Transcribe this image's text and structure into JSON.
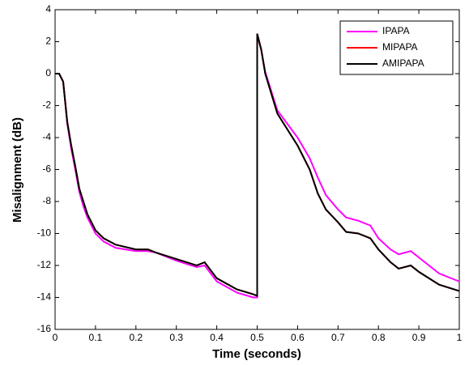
{
  "chart_data": {
    "type": "line",
    "x_label": "Time (seconds)",
    "y_label": "Misalignment (dB)",
    "x": [
      0,
      0.01,
      0.02,
      0.03,
      0.04,
      0.05,
      0.06,
      0.07,
      0.08,
      0.1,
      0.12,
      0.15,
      0.2,
      0.23,
      0.25,
      0.3,
      0.35,
      0.37,
      0.4,
      0.45,
      0.49,
      0.5,
      0.5,
      0.51,
      0.52,
      0.55,
      0.6,
      0.63,
      0.65,
      0.67,
      0.7,
      0.72,
      0.75,
      0.78,
      0.8,
      0.83,
      0.85,
      0.88,
      0.9,
      0.95,
      1
    ],
    "series": [
      {
        "name": "IPAPA",
        "color": "#ff00ff",
        "values": [
          0,
          0,
          -0.5,
          -3.1,
          -4.7,
          -6,
          -7.4,
          -8.3,
          -9,
          -10,
          -10.5,
          -10.9,
          -11.1,
          -11.1,
          -11.2,
          -11.7,
          -12.1,
          -12,
          -13,
          -13.7,
          -14,
          -14,
          2.4,
          1.5,
          0.1,
          -2.3,
          -4,
          -5.3,
          -6.5,
          -7.6,
          -8.5,
          -9,
          -9.2,
          -9.5,
          -10.3,
          -11,
          -11.3,
          -11.1,
          -11.5,
          -12.5,
          -13
        ]
      },
      {
        "name": "MIPAPA",
        "color": "#ff0000",
        "values": [
          0,
          0,
          -0.5,
          -3,
          -4.5,
          -5.8,
          -7.2,
          -8,
          -8.8,
          -9.8,
          -10.3,
          -10.7,
          -11,
          -11,
          -11.2,
          -11.6,
          -12,
          -11.8,
          -12.8,
          -13.5,
          -13.8,
          -13.9,
          2.5,
          1.5,
          0,
          -2.5,
          -4.5,
          -6,
          -7.5,
          -8.5,
          -9.3,
          -9.9,
          -10,
          -10.3,
          -11,
          -11.8,
          -12.2,
          -12,
          -12.4,
          -13.2,
          -13.6
        ]
      },
      {
        "name": "AMIPAPA",
        "color": "#000000",
        "values": [
          0,
          0,
          -0.5,
          -3,
          -4.5,
          -5.8,
          -7.2,
          -8,
          -8.8,
          -9.8,
          -10.3,
          -10.7,
          -11,
          -11,
          -11.2,
          -11.6,
          -12,
          -11.8,
          -12.8,
          -13.5,
          -13.8,
          -13.9,
          2.5,
          1.5,
          0,
          -2.5,
          -4.5,
          -6,
          -7.5,
          -8.5,
          -9.3,
          -9.9,
          -10,
          -10.3,
          -11,
          -11.8,
          -12.2,
          -12,
          -12.4,
          -13.2,
          -13.6
        ]
      }
    ],
    "xlim": [
      0,
      1
    ],
    "ylim": [
      -16,
      4
    ],
    "xticks": [
      0,
      0.1,
      0.2,
      0.3,
      0.4,
      0.5,
      0.6,
      0.7,
      0.8,
      0.9,
      1
    ],
    "yticks": [
      -16,
      -14,
      -12,
      -10,
      -8,
      -6,
      -4,
      -2,
      0,
      2,
      4
    ],
    "legend": "top-right"
  }
}
